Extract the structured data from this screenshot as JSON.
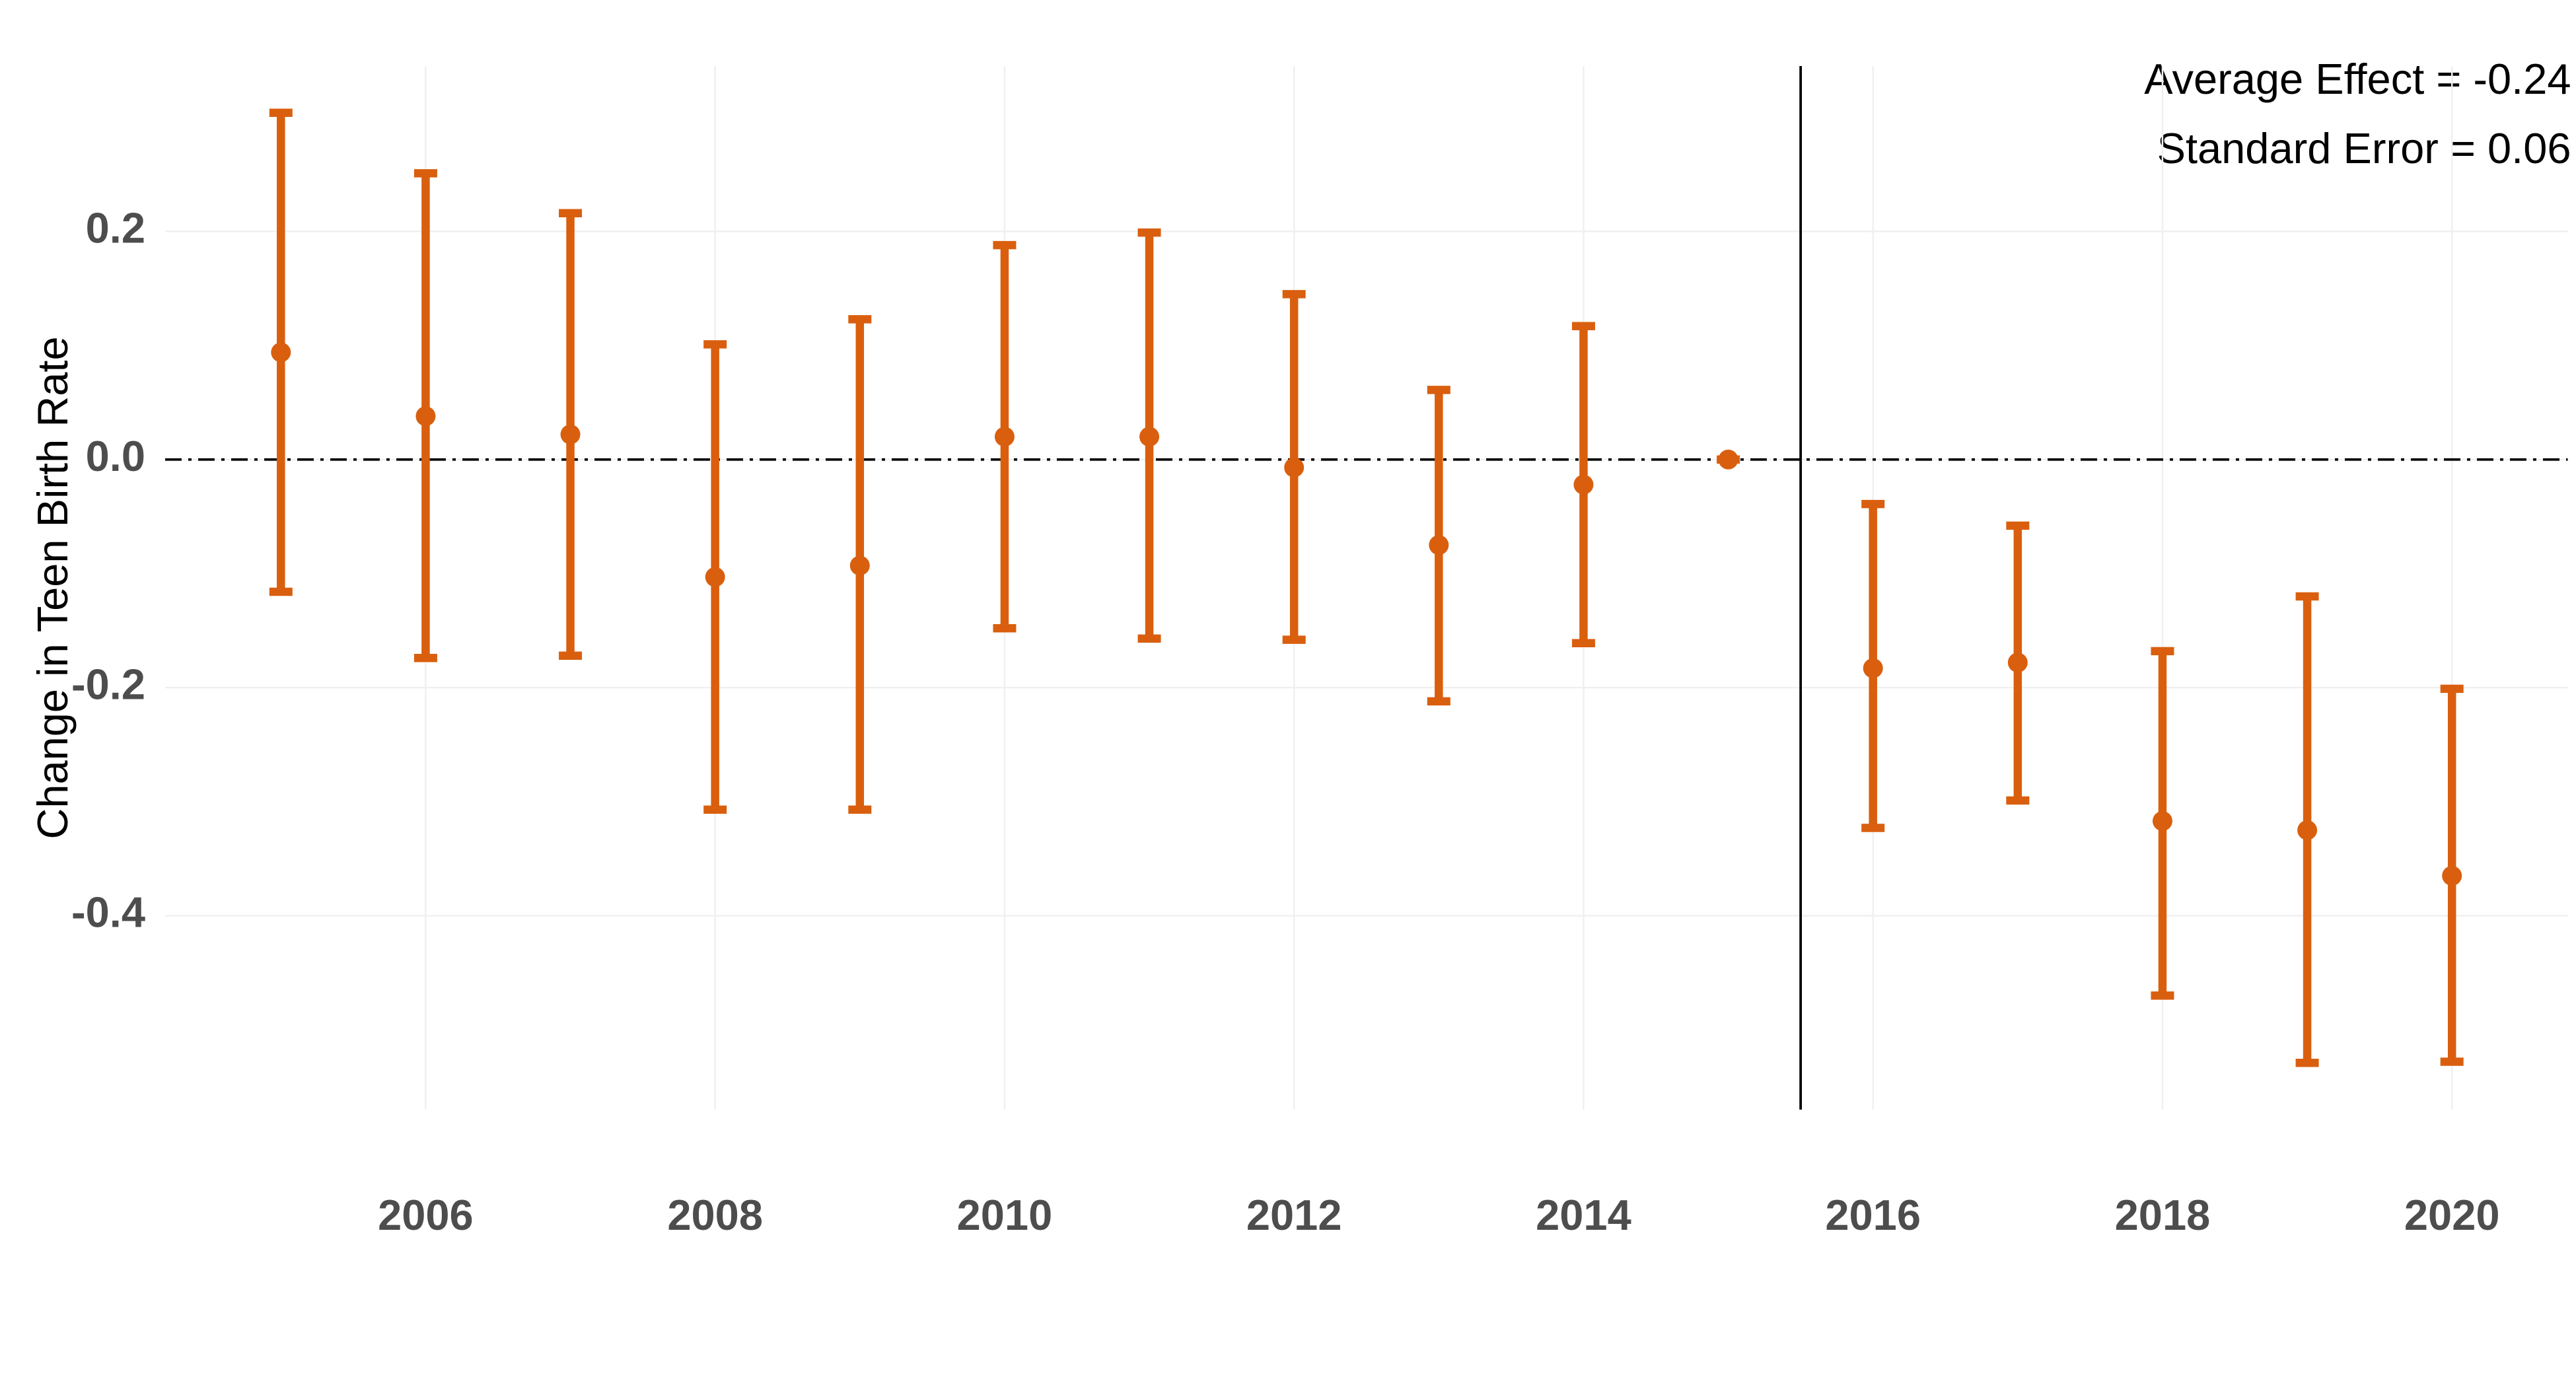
{
  "chart_data": {
    "type": "errorbar",
    "ylabel": "Change in Teen Birth Rate",
    "annotations": [
      "Average Effect = -0.24",
      "Standard Error = 0.06"
    ],
    "x": [
      2005,
      2006,
      2007,
      2008,
      2009,
      2010,
      2011,
      2012,
      2013,
      2014,
      2015,
      2016,
      2017,
      2018,
      2019,
      2020
    ],
    "series": [
      {
        "color": "#d95f0e",
        "values": [
          0.094,
          0.038,
          0.022,
          -0.103,
          -0.093,
          0.02,
          0.02,
          -0.007,
          -0.075,
          -0.022,
          0,
          -0.183,
          -0.178,
          -0.317,
          -0.325,
          -0.365
        ],
        "lower": [
          -0.116,
          -0.174,
          -0.172,
          -0.307,
          -0.307,
          -0.148,
          -0.157,
          -0.158,
          -0.212,
          -0.161,
          0,
          -0.323,
          -0.299,
          -0.47,
          -0.529,
          -0.528
        ],
        "upper": [
          0.304,
          0.251,
          0.216,
          0.101,
          0.123,
          0.188,
          0.199,
          0.145,
          0.061,
          0.117,
          0,
          -0.039,
          -0.058,
          -0.168,
          -0.12,
          -0.201
        ]
      }
    ],
    "xlim": [
      2004.2,
      2020.8
    ],
    "ylim": [
      -0.57,
      0.345
    ],
    "xticks": [
      2006,
      2008,
      2010,
      2012,
      2014,
      2016,
      2018,
      2020
    ],
    "yticks": [
      -0.4,
      -0.2,
      {
        "value": 0,
        "label": "0.0"
      },
      0.2
    ],
    "hline": 0,
    "vline": 2015.5,
    "grid": true
  }
}
